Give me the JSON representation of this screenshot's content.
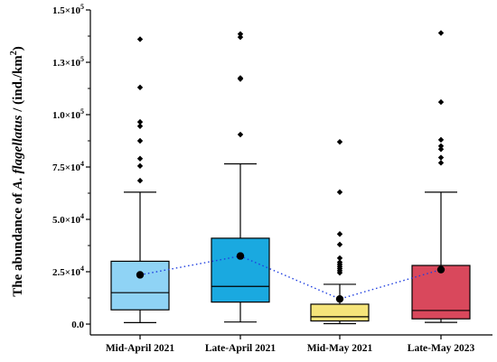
{
  "chart_data": {
    "type": "box",
    "ylabel": {
      "prefix": "The abundance of ",
      "species": "A. flagellatus",
      "unit_prefix": " / (ind./km",
      "unit_sup": "2",
      "unit_suffix": ")"
    },
    "ylim": [
      0,
      150000
    ],
    "yticks": [
      {
        "value": 0,
        "mantissa": "0.0",
        "exponent": ""
      },
      {
        "value": 25000,
        "mantissa": "2.5×10",
        "exponent": "4"
      },
      {
        "value": 50000,
        "mantissa": "5.0×10",
        "exponent": "4"
      },
      {
        "value": 75000,
        "mantissa": "7.5×10",
        "exponent": "4"
      },
      {
        "value": 100000,
        "mantissa": "1.0×10",
        "exponent": "5"
      },
      {
        "value": 125000,
        "mantissa": "1.3×10",
        "exponent": "5"
      },
      {
        "value": 150000,
        "mantissa": "1.5×10",
        "exponent": "5"
      }
    ],
    "categories": [
      "Mid-April 2021",
      "Late-April 2021",
      "Mid-May 2021",
      "Late-May 2023"
    ],
    "boxes": [
      {
        "category": "Mid-April 2021",
        "color": "#8fd3f5",
        "whisker_low": 700,
        "q1": 6800,
        "median": 15000,
        "q3": 30000,
        "whisker_high": 63000,
        "mean": 23500,
        "outliers": [
          68500,
          75500,
          79000,
          87500,
          94500,
          96500,
          113000,
          136000
        ]
      },
      {
        "category": "Late-April 2021",
        "color": "#1aa9e0",
        "whisker_low": 1000,
        "q1": 10500,
        "median": 18000,
        "q3": 41000,
        "whisker_high": 76500,
        "mean": 32500,
        "outliers": [
          90500,
          117000,
          117500,
          137000,
          138500
        ]
      },
      {
        "category": "Mid-May 2021",
        "color": "#f5e47a",
        "whisker_low": 200,
        "q1": 1500,
        "median": 3500,
        "q3": 9500,
        "whisker_high": 19000,
        "mean": 12000,
        "outliers": [
          24500,
          25500,
          26500,
          27500,
          28500,
          29500,
          31500,
          38000,
          43000,
          63000,
          87000
        ]
      },
      {
        "category": "Late-May 2023",
        "color": "#d9485c",
        "whisker_low": 800,
        "q1": 2500,
        "median": 6500,
        "q3": 28000,
        "whisker_high": 63000,
        "mean": 26000,
        "outliers": [
          77000,
          79500,
          83500,
          85000,
          88000,
          106000,
          139000
        ]
      }
    ],
    "mean_line": {
      "style": "dotted",
      "color": "#1f3fe0"
    }
  }
}
